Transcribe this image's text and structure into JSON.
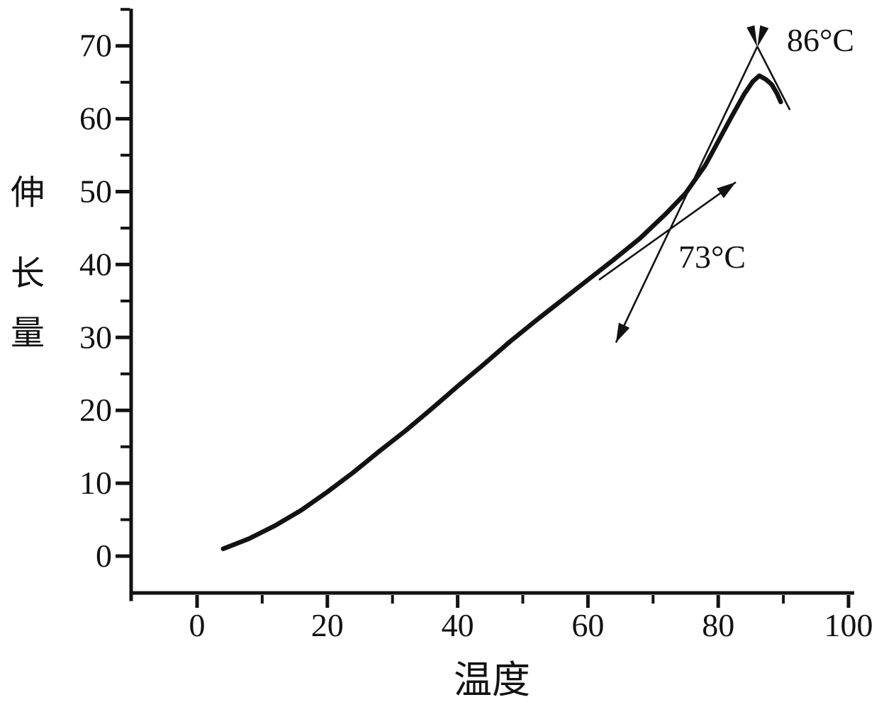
{
  "figure_title": "",
  "chart_data": {
    "type": "line",
    "title": "",
    "xlabel": "温度",
    "ylabel": "伸长量",
    "ylabel_chars": [
      "伸",
      "长",
      "量"
    ],
    "xlim": [
      -10,
      100
    ],
    "ylim": [
      -5,
      75
    ],
    "x_ticks": [
      0,
      20,
      40,
      60,
      80,
      100
    ],
    "x_minor_ticks": [
      10,
      30,
      50,
      70,
      90
    ],
    "y_ticks": [
      0,
      10,
      20,
      30,
      40,
      50,
      60,
      70
    ],
    "y_minor_ticks": [
      5,
      15,
      25,
      35,
      45,
      55,
      65,
      75
    ],
    "grid": false,
    "legend": "none",
    "line_color": "#121212",
    "series": [
      {
        "name": "elongation-vs-temperature",
        "x": [
          4,
          8,
          12,
          16,
          20,
          24,
          28,
          32,
          36,
          40,
          44,
          48,
          52,
          56,
          60,
          64,
          68,
          72,
          75,
          78,
          80,
          82,
          84,
          85.3,
          86.3,
          87.3,
          88.2,
          89,
          89.6
        ],
        "y": [
          1,
          2.4,
          4.2,
          6.3,
          8.8,
          11.5,
          14.4,
          17.2,
          20.2,
          23.3,
          26.3,
          29.4,
          32.3,
          35.1,
          37.9,
          40.7,
          43.6,
          47,
          49.8,
          53.6,
          56.9,
          60.2,
          63.4,
          65.1,
          65.9,
          65.4,
          64.7,
          63.5,
          62.3
        ]
      }
    ],
    "annotations": [
      {
        "text": "86°C",
        "value_x": 86,
        "intersection": [
          86,
          70
        ]
      },
      {
        "text": "73°C",
        "value_x": 73,
        "intersection": [
          73,
          45
        ]
      }
    ],
    "construction_lines": [
      {
        "name": "steep-tangent-line",
        "from": [
          64.3,
          29.3
        ],
        "to": [
          86,
          69.9
        ],
        "arrow_at": "from"
      },
      {
        "name": "mid-tangent-line",
        "from": [
          61.7,
          37.9
        ],
        "to": [
          82.7,
          51.3
        ],
        "arrow_at": "to"
      },
      {
        "name": "peak-right-tangent",
        "from": [
          86,
          69.9
        ],
        "to": [
          91,
          61.2
        ],
        "arrow_at": "none"
      }
    ]
  }
}
